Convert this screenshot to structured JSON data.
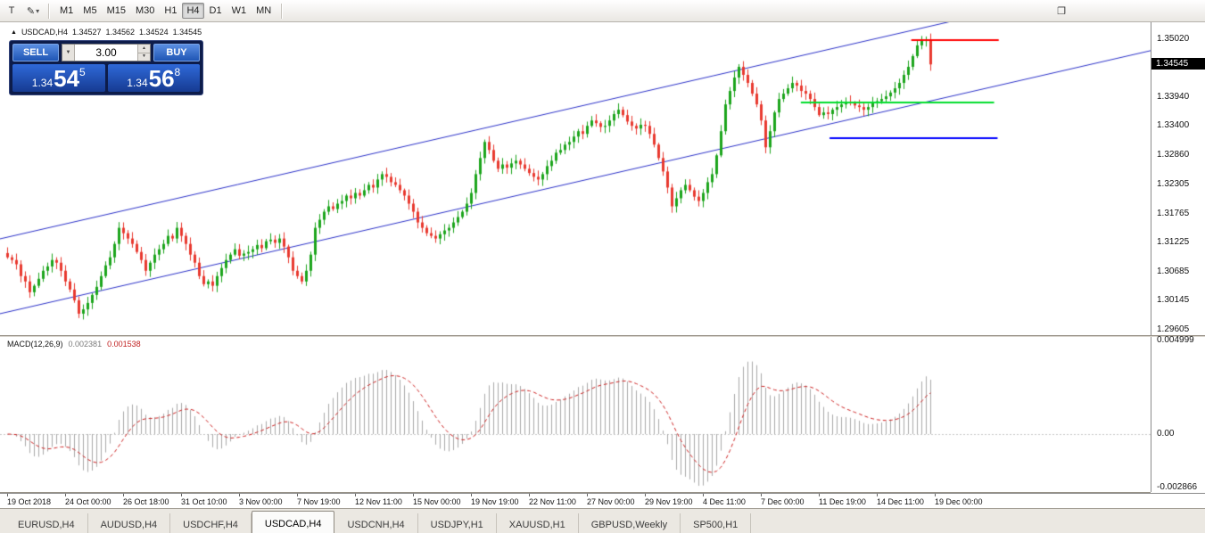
{
  "toolbar": {
    "icons": {
      "text_tool": "T",
      "pencil": "✎",
      "chevron_down": "▾",
      "window": "❐"
    },
    "timeframes": [
      "M1",
      "M5",
      "M15",
      "M30",
      "H1",
      "H4",
      "D1",
      "W1",
      "MN"
    ],
    "active_timeframe": "H4"
  },
  "chart_header": {
    "marker": "▲",
    "symbol_label": "USDCAD,H4",
    "open": "1.34527",
    "high": "1.34562",
    "low": "1.34524",
    "close": "1.34545"
  },
  "trade_widget": {
    "sell_label": "SELL",
    "buy_label": "BUY",
    "volume": "3.00",
    "spin_up": "▲",
    "spin_down": "▼",
    "sell_price": {
      "prefix": "1.34",
      "big": "54",
      "sup": "5"
    },
    "buy_price": {
      "prefix": "1.34",
      "big": "56",
      "sup": "8"
    }
  },
  "chart_data": {
    "type": "candlestick",
    "symbol": "USDCAD",
    "timeframe": "H4",
    "y_range": [
      1.295,
      1.3533
    ],
    "price_axis_labels": [
      "1.35020",
      "1.33940",
      "1.33400",
      "1.32860",
      "1.32305",
      "1.31765",
      "1.31225",
      "1.30685",
      "1.30145",
      "1.29605"
    ],
    "current_price": "1.34545",
    "up_color": "#1ca51c",
    "down_color": "#e8392f",
    "closes": [
      1.3095,
      1.309,
      1.3082,
      1.306,
      1.305,
      1.303,
      1.3042,
      1.3055,
      1.307,
      1.3078,
      1.309,
      1.3085,
      1.307,
      1.305,
      1.3035,
      1.3015,
      1.299,
      1.2998,
      1.301,
      1.3025,
      1.304,
      1.306,
      1.308,
      1.3095,
      1.312,
      1.315,
      1.314,
      1.313,
      1.312,
      1.3105,
      1.309,
      1.307,
      1.3085,
      1.31,
      1.311,
      1.312,
      1.3135,
      1.313,
      1.315,
      1.3135,
      1.312,
      1.31,
      1.3085,
      1.306,
      1.3045,
      1.305,
      1.3042,
      1.306,
      1.3075,
      1.309,
      1.31,
      1.311,
      1.3098,
      1.3102,
      1.3105,
      1.311,
      1.3118,
      1.3112,
      1.3125,
      1.3128,
      1.3122,
      1.313,
      1.3115,
      1.3095,
      1.307,
      1.306,
      1.305,
      1.307,
      1.31,
      1.315,
      1.3165,
      1.318,
      1.319,
      1.3185,
      1.3195,
      1.32,
      1.321,
      1.3205,
      1.3215,
      1.321,
      1.322,
      1.323,
      1.3225,
      1.324,
      1.325,
      1.3245,
      1.3235,
      1.323,
      1.322,
      1.321,
      1.3195,
      1.318,
      1.316,
      1.315,
      1.314,
      1.3135,
      1.313,
      1.3138,
      1.3145,
      1.315,
      1.316,
      1.317,
      1.318,
      1.3195,
      1.3215,
      1.325,
      1.328,
      1.331,
      1.3295,
      1.3275,
      1.326,
      1.3268,
      1.3262,
      1.327,
      1.3275,
      1.3268,
      1.326,
      1.3252,
      1.3245,
      1.324,
      1.325,
      1.3265,
      1.3275,
      1.329,
      1.3295,
      1.3305,
      1.331,
      1.332,
      1.333,
      1.3325,
      1.334,
      1.335,
      1.3345,
      1.3338,
      1.334,
      1.335,
      1.3362,
      1.337,
      1.336,
      1.3348,
      1.334,
      1.3335,
      1.3342,
      1.334,
      1.3325,
      1.3305,
      1.328,
      1.3255,
      1.3225,
      1.319,
      1.3205,
      1.322,
      1.323,
      1.322,
      1.3208,
      1.32,
      1.3215,
      1.3235,
      1.325,
      1.3285,
      1.333,
      1.338,
      1.3405,
      1.343,
      1.345,
      1.3435,
      1.342,
      1.34,
      1.338,
      1.335,
      1.33,
      1.333,
      1.3365,
      1.339,
      1.34,
      1.341,
      1.342,
      1.3415,
      1.3405,
      1.34,
      1.339,
      1.3375,
      1.336,
      1.3365,
      1.3362,
      1.337,
      1.3375,
      1.338,
      1.3385,
      1.3382,
      1.3378,
      1.3375,
      1.337,
      1.3375,
      1.3382,
      1.3386,
      1.339,
      1.3395,
      1.3402,
      1.341,
      1.342,
      1.3435,
      1.345,
      1.347,
      1.349,
      1.3498,
      1.35,
      1.34545
    ],
    "channel": {
      "color": "#2b31c8",
      "upper": {
        "start_price": 1.31294,
        "end_price": 1.36196
      },
      "lower": {
        "start_price": 1.29899,
        "end_price": 1.34801
      }
    },
    "hlines": [
      {
        "price": 1.35,
        "x1_frac": 0.792,
        "x2_frac": 0.868,
        "color": "#ff0000"
      },
      {
        "price": 1.3383,
        "x1_frac": 0.696,
        "x2_frac": 0.864,
        "color": "#00dd2c"
      },
      {
        "price": 1.3317,
        "x1_frac": 0.721,
        "x2_frac": 0.867,
        "color": "#0000ff"
      }
    ]
  },
  "macd": {
    "label": "MACD(12,26,9)",
    "value_main": "0.002381",
    "value_signal": "0.001538",
    "y_range": [
      -0.0031,
      0.0052
    ],
    "hist_color": "#a8a8a8",
    "signal_color": "#cc2020",
    "axis_labels": [
      {
        "text": "0.004999",
        "value": 0.004999
      },
      {
        "text": "0.00",
        "value": 0
      },
      {
        "text": "-0.002866",
        "value": -0.002866
      }
    ]
  },
  "time_axis": {
    "labels": [
      "19 Oct 2018",
      "24 Oct 00:00",
      "26 Oct 18:00",
      "31 Oct 10:00",
      "3 Nov 00:00",
      "7 Nov 19:00",
      "12 Nov 11:00",
      "15 Nov 00:00",
      "19 Nov 19:00",
      "22 Nov 11:00",
      "27 Nov 00:00",
      "29 Nov 19:00",
      "4 Dec 11:00",
      "7 Dec 00:00",
      "11 Dec 19:00",
      "14 Dec 11:00",
      "19 Dec 00:00"
    ]
  },
  "bottom_tabs": {
    "active": "USDCAD,H4",
    "items": [
      "EURUSD,H4",
      "AUDUSD,H4",
      "USDCHF,H4",
      "USDCAD,H4",
      "USDCNH,H4",
      "USDJPY,H1",
      "XAUUSD,H1",
      "GBPUSD,Weekly",
      "SP500,H1"
    ]
  }
}
